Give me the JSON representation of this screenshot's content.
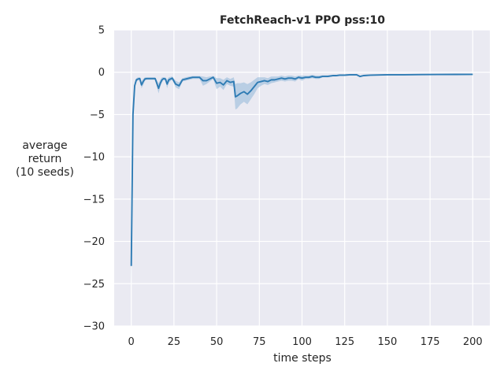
{
  "chart_data": {
    "type": "line",
    "title": "FetchReach-v1 PPO pss:10",
    "xlabel": "time steps",
    "ylabel_lines": [
      "average",
      "return",
      "(10 seeds)"
    ],
    "xlim": [
      -10,
      210
    ],
    "ylim": [
      -30,
      5
    ],
    "xticks": [
      0,
      25,
      50,
      75,
      100,
      125,
      150,
      175,
      200
    ],
    "yticks": [
      5,
      0,
      -5,
      -10,
      -15,
      -20,
      -25,
      -30
    ],
    "grid": true,
    "colors": {
      "background": "#eaeaf2",
      "grid": "#ffffff",
      "line": "#2e7bb4",
      "band": "#8fb6d9"
    },
    "series": [
      {
        "x": [
          0,
          1,
          2,
          3,
          4,
          5,
          6,
          7,
          8,
          9,
          10,
          12,
          14,
          16,
          17,
          18,
          19,
          20,
          21,
          22,
          24,
          26,
          28,
          30,
          32,
          34,
          36,
          38,
          40,
          42,
          44,
          46,
          48,
          50,
          52,
          54,
          56,
          58,
          60,
          61,
          62,
          64,
          66,
          68,
          70,
          72,
          74,
          76,
          78,
          80,
          82,
          84,
          86,
          88,
          90,
          92,
          94,
          96,
          98,
          100,
          102,
          104,
          106,
          108,
          110,
          112,
          115,
          118,
          120,
          122,
          125,
          128,
          130,
          132,
          134,
          136,
          140,
          150,
          160,
          170,
          180,
          190,
          200
        ],
        "y": [
          -22.9,
          -5.0,
          -1.6,
          -0.9,
          -0.8,
          -0.75,
          -1.5,
          -1.1,
          -0.8,
          -0.75,
          -0.75,
          -0.75,
          -0.75,
          -1.9,
          -1.3,
          -0.9,
          -0.75,
          -0.8,
          -1.4,
          -0.9,
          -0.7,
          -1.4,
          -1.6,
          -0.9,
          -0.8,
          -0.7,
          -0.6,
          -0.6,
          -0.6,
          -1.0,
          -1.0,
          -0.8,
          -0.6,
          -1.3,
          -1.2,
          -1.5,
          -1.0,
          -1.2,
          -1.1,
          -2.9,
          -2.8,
          -2.5,
          -2.3,
          -2.6,
          -2.2,
          -1.7,
          -1.2,
          -1.1,
          -1.0,
          -1.1,
          -0.9,
          -0.9,
          -0.8,
          -0.7,
          -0.8,
          -0.7,
          -0.7,
          -0.8,
          -0.6,
          -0.7,
          -0.6,
          -0.6,
          -0.5,
          -0.6,
          -0.6,
          -0.5,
          -0.5,
          -0.4,
          -0.4,
          -0.35,
          -0.35,
          -0.3,
          -0.3,
          -0.3,
          -0.5,
          -0.4,
          -0.35,
          -0.3,
          -0.3,
          -0.28,
          -0.27,
          -0.26,
          -0.25
        ],
        "lower": [
          -25.3,
          -5.8,
          -2.0,
          -1.1,
          -1.0,
          -0.9,
          -1.9,
          -1.5,
          -1.0,
          -0.9,
          -0.9,
          -0.9,
          -0.9,
          -2.5,
          -1.7,
          -1.2,
          -0.9,
          -1.0,
          -1.9,
          -1.2,
          -0.9,
          -1.8,
          -2.0,
          -1.1,
          -1.0,
          -0.9,
          -0.8,
          -0.8,
          -0.8,
          -1.6,
          -1.4,
          -1.1,
          -0.8,
          -2.0,
          -1.7,
          -2.1,
          -1.4,
          -1.6,
          -1.7,
          -4.4,
          -4.3,
          -3.8,
          -3.5,
          -3.8,
          -3.2,
          -2.6,
          -1.9,
          -1.6,
          -1.4,
          -1.5,
          -1.3,
          -1.2,
          -1.1,
          -1.0,
          -1.1,
          -1.0,
          -1.0,
          -1.1,
          -0.8,
          -1.0,
          -0.8,
          -0.8,
          -0.7,
          -0.8,
          -0.8,
          -0.6,
          -0.6,
          -0.5,
          -0.5,
          -0.45,
          -0.45,
          -0.4,
          -0.4,
          -0.4,
          -0.6,
          -0.5,
          -0.42,
          -0.38,
          -0.35,
          -0.33,
          -0.31,
          -0.3,
          -0.29
        ],
        "upper": [
          -20.6,
          -4.2,
          -1.2,
          -0.7,
          -0.6,
          -0.6,
          -1.1,
          -0.8,
          -0.6,
          -0.6,
          -0.6,
          -0.6,
          -0.6,
          -1.3,
          -0.9,
          -0.6,
          -0.6,
          -0.6,
          -0.9,
          -0.6,
          -0.5,
          -1.0,
          -1.2,
          -0.7,
          -0.6,
          -0.5,
          -0.45,
          -0.45,
          -0.45,
          -0.5,
          -0.6,
          -0.5,
          -0.45,
          -0.7,
          -0.7,
          -0.9,
          -0.6,
          -0.8,
          -0.6,
          -1.4,
          -1.3,
          -1.3,
          -1.2,
          -1.4,
          -1.2,
          -0.9,
          -0.6,
          -0.6,
          -0.6,
          -0.7,
          -0.5,
          -0.5,
          -0.5,
          -0.4,
          -0.5,
          -0.4,
          -0.4,
          -0.5,
          -0.4,
          -0.4,
          -0.4,
          -0.4,
          -0.3,
          -0.4,
          -0.4,
          -0.35,
          -0.35,
          -0.3,
          -0.3,
          -0.25,
          -0.25,
          -0.2,
          -0.2,
          -0.2,
          -0.4,
          -0.3,
          -0.28,
          -0.24,
          -0.25,
          -0.23,
          -0.23,
          -0.22,
          -0.21
        ]
      }
    ]
  }
}
